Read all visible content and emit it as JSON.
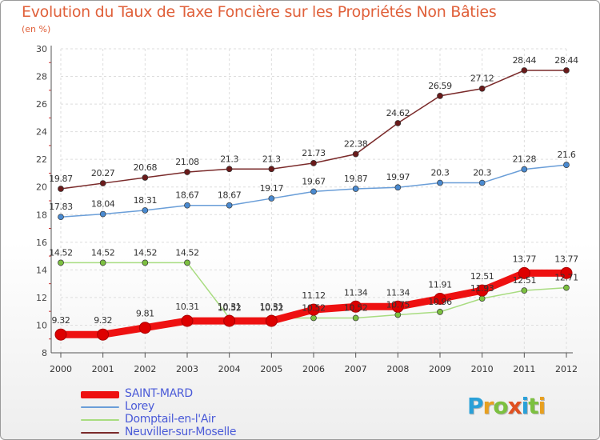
{
  "title": "Evolution du Taux de Taxe Foncière sur les Propriétés Non Bâties",
  "subtitle": "(en %)",
  "logo": {
    "text": "Proxiti",
    "colors": [
      "#2aa0d8",
      "#e8a020",
      "#7cc040",
      "#e05020",
      "#2aa0d8",
      "#7cc040",
      "#e8a020"
    ]
  },
  "chart_data": {
    "type": "line",
    "x": [
      2000,
      2001,
      2002,
      2003,
      2004,
      2005,
      2006,
      2007,
      2008,
      2009,
      2010,
      2011,
      2012
    ],
    "ylim": [
      8,
      30
    ],
    "yticks": [
      8,
      10,
      12,
      14,
      16,
      18,
      20,
      22,
      24,
      26,
      28,
      30
    ],
    "grid": true,
    "legend_position": "bottom-left",
    "series": [
      {
        "name": "Neuviller-sur-Moselle",
        "color": "#7a2a2a",
        "dot": "#6a1a1a",
        "width": 1.5,
        "radius": 3.5,
        "values": [
          19.87,
          20.27,
          20.68,
          21.08,
          21.3,
          21.3,
          21.73,
          22.38,
          24.62,
          26.59,
          27.12,
          28.44,
          28.44
        ],
        "labels": [
          "19.87",
          "20.27",
          "20.68",
          "21.08",
          "21.3",
          "21.3",
          "21.73",
          "22.38",
          "24.62",
          "26.59",
          "27.12",
          "28.44",
          "28.44"
        ]
      },
      {
        "name": "Lorey",
        "color": "#6a9ed8",
        "dot": "#4a8ad0",
        "width": 1.5,
        "radius": 3.5,
        "values": [
          17.83,
          18.04,
          18.31,
          18.67,
          18.67,
          19.17,
          19.67,
          19.87,
          19.97,
          20.3,
          20.3,
          21.28,
          21.6
        ],
        "labels": [
          "17.83",
          "18.04",
          "18.31",
          "18.67",
          "18.67",
          "19.17",
          "19.67",
          "19.87",
          "19.97",
          "20.3",
          "20.3",
          "21.28",
          "21.6"
        ]
      },
      {
        "name": "Domptail-en-l'Air",
        "color": "#a8dc80",
        "dot": "#7cc040",
        "width": 1.5,
        "radius": 3.5,
        "values": [
          14.52,
          14.52,
          14.52,
          14.52,
          10.52,
          10.52,
          10.52,
          10.52,
          10.75,
          10.96,
          11.93,
          12.51,
          12.71
        ],
        "labels": [
          "14.52",
          "14.52",
          "14.52",
          "14.52",
          "10.52",
          "10.52",
          "10.52",
          "10.52",
          "10.75",
          "10.96",
          "11.93",
          "12.51",
          "12.71"
        ]
      },
      {
        "name": "SAINT-MARD",
        "color": "#ee1111",
        "dot": "#dd0000",
        "width": 9,
        "radius": 7,
        "values": [
          9.32,
          9.32,
          9.81,
          10.31,
          10.31,
          10.31,
          11.12,
          11.34,
          11.34,
          11.91,
          12.51,
          13.77,
          13.77
        ],
        "labels": [
          "9.32",
          "9.32",
          "9.81",
          "10.31",
          "10.31",
          "10.31",
          "11.12",
          "11.34",
          "11.34",
          "11.91",
          "12.51",
          "13.77",
          "13.77"
        ]
      }
    ],
    "legend": [
      {
        "name": "SAINT-MARD",
        "color": "#ee1111",
        "thickness": 9
      },
      {
        "name": "Lorey",
        "color": "#6a9ed8",
        "thickness": 2
      },
      {
        "name": "Domptail-en-l'Air",
        "color": "#a8dc80",
        "thickness": 2
      },
      {
        "name": "Neuviller-sur-Moselle",
        "color": "#7a2a2a",
        "thickness": 2
      }
    ]
  }
}
